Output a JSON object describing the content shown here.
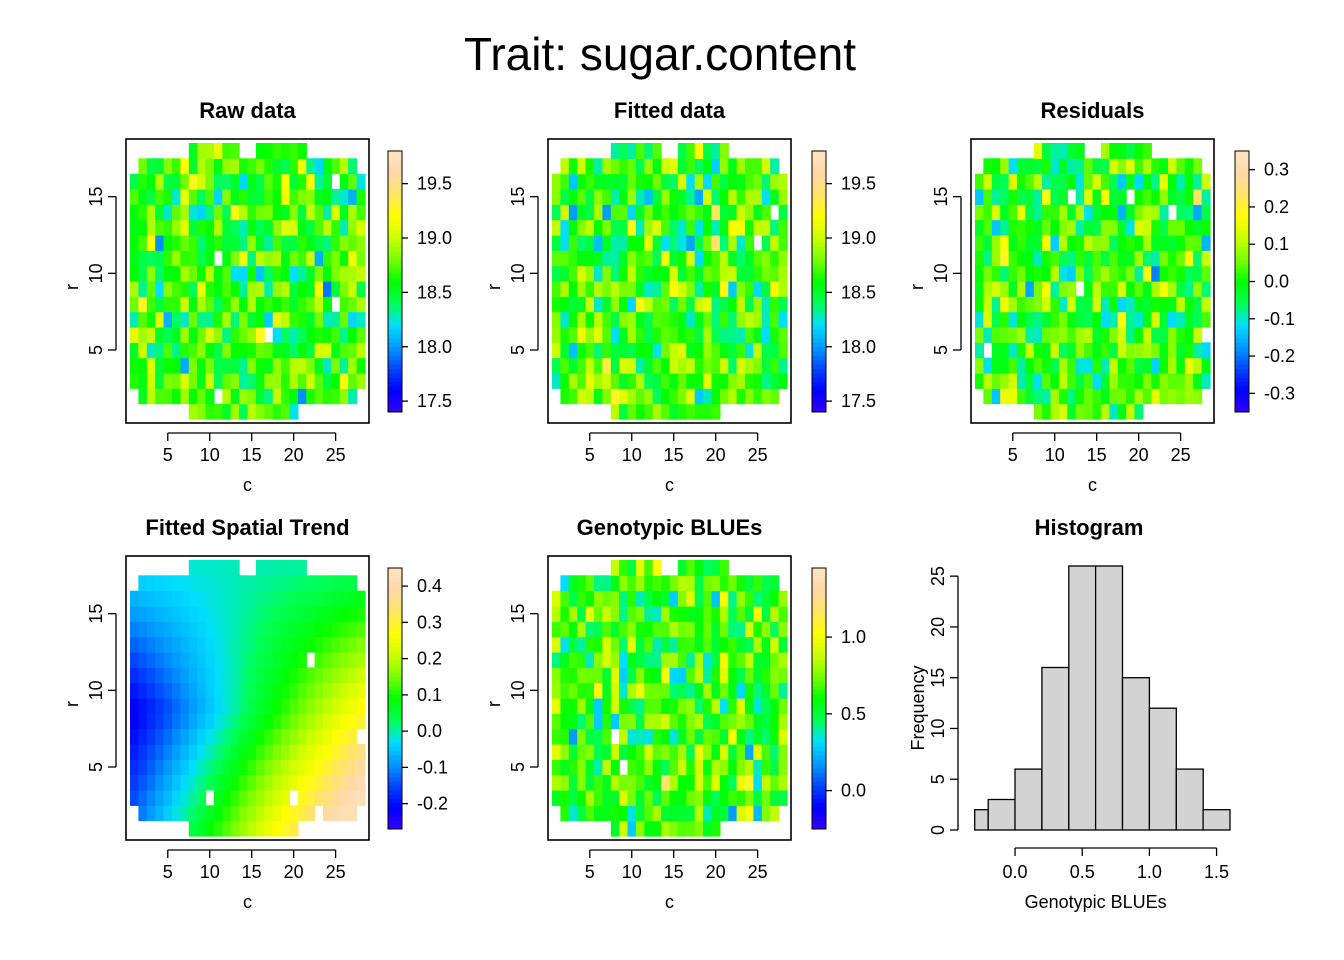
{
  "figure": {
    "title": "Trait: sugar.content"
  },
  "colors": {
    "palette": [
      "#3300ff",
      "#0000ff",
      "#0044ff",
      "#0099ff",
      "#00ddff",
      "#00ff55",
      "#00ff00",
      "#77ff00",
      "#ccff00",
      "#ffff00",
      "#ffe566",
      "#ffd9a6",
      "#ffe4c4"
    ],
    "histogram_fill": "#d3d3d3",
    "missing": "#ffffff"
  },
  "chart_data": [
    {
      "type": "heatmap",
      "title": "Raw data",
      "xlabel": "c",
      "ylabel": "r",
      "xlim": [
        1,
        28
      ],
      "ylim": [
        1,
        18
      ],
      "xticks": [
        "5",
        "10",
        "15",
        "20",
        "25"
      ],
      "yticks": [
        "5",
        "10",
        "15"
      ],
      "legend_range": [
        17.4,
        19.8
      ],
      "legend_ticks": [
        "17.5",
        "18.0",
        "18.5",
        "19.0",
        "19.5"
      ],
      "value_range": [
        17.4,
        19.8
      ]
    },
    {
      "type": "heatmap",
      "title": "Fitted data",
      "xlabel": "c",
      "ylabel": "r",
      "xlim": [
        1,
        28
      ],
      "ylim": [
        1,
        18
      ],
      "xticks": [
        "5",
        "10",
        "15",
        "20",
        "25"
      ],
      "yticks": [
        "5",
        "10",
        "15"
      ],
      "legend_range": [
        17.4,
        19.8
      ],
      "legend_ticks": [
        "17.5",
        "18.0",
        "18.5",
        "19.0",
        "19.5"
      ],
      "value_range": [
        17.4,
        19.8
      ]
    },
    {
      "type": "heatmap",
      "title": "Residuals",
      "xlabel": "c",
      "ylabel": "r",
      "xlim": [
        1,
        28
      ],
      "ylim": [
        1,
        18
      ],
      "xticks": [
        "5",
        "10",
        "15",
        "20",
        "25"
      ],
      "yticks": [
        "5",
        "10",
        "15"
      ],
      "legend_range": [
        -0.35,
        0.35
      ],
      "legend_ticks": [
        "-0.3",
        "-0.2",
        "-0.1",
        "0.0",
        "0.1",
        "0.2",
        "0.3"
      ],
      "value_range": [
        -0.35,
        0.35
      ]
    },
    {
      "type": "heatmap",
      "title": "Fitted Spatial Trend",
      "xlabel": "c",
      "ylabel": "r",
      "xlim": [
        1,
        28
      ],
      "ylim": [
        1,
        18
      ],
      "xticks": [
        "5",
        "10",
        "15",
        "20",
        "25"
      ],
      "yticks": [
        "5",
        "10",
        "15"
      ],
      "legend_range": [
        -0.27,
        0.45
      ],
      "legend_ticks": [
        "-0.2",
        "-0.1",
        "0.0",
        "0.1",
        "0.2",
        "0.3",
        "0.4"
      ],
      "value_range": [
        -0.27,
        0.45
      ],
      "smooth": true
    },
    {
      "type": "heatmap",
      "title": "Genotypic BLUEs",
      "xlabel": "c",
      "ylabel": "r",
      "xlim": [
        1,
        28
      ],
      "ylim": [
        1,
        18
      ],
      "xticks": [
        "5",
        "10",
        "15",
        "20",
        "25"
      ],
      "yticks": [
        "5",
        "10",
        "15"
      ],
      "legend_range": [
        -0.25,
        1.45
      ],
      "legend_ticks": [
        "0.0",
        "0.5",
        "1.0"
      ],
      "value_range": [
        -0.25,
        1.45
      ]
    },
    {
      "type": "bar",
      "title": "Histogram",
      "xlabel": "Genotypic BLUEs",
      "ylabel": "Frequency",
      "bin_edges": [
        -0.3,
        -0.2,
        0.0,
        0.2,
        0.4,
        0.6,
        0.8,
        1.0,
        1.2,
        1.4,
        1.6
      ],
      "values": [
        2,
        3,
        6,
        16,
        26,
        26,
        15,
        12,
        6,
        2
      ],
      "xticks": [
        "0.0",
        "0.5",
        "1.0",
        "1.5"
      ],
      "yticks": [
        "0",
        "5",
        "10",
        "15",
        "20",
        "25"
      ],
      "xlim": [
        -0.35,
        1.6
      ],
      "ylim": [
        0,
        26
      ]
    }
  ]
}
